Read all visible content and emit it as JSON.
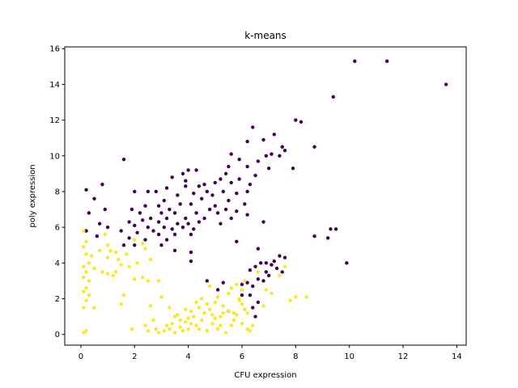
{
  "chart_data": {
    "type": "scatter",
    "title": "k-means",
    "xlabel": "CFU expression",
    "ylabel": "poly expression",
    "xlim": [
      -0.6,
      14.35
    ],
    "ylim": [
      -0.6,
      16.1
    ],
    "xticks": [
      "0",
      "2",
      "4",
      "6",
      "8",
      "10",
      "12",
      "14"
    ],
    "yticks": [
      "0",
      "2",
      "4",
      "6",
      "8",
      "10",
      "12",
      "14",
      "16"
    ],
    "grid": false,
    "series": [
      {
        "color": "#440154",
        "points": [
          [
            10.2,
            15.3
          ],
          [
            11.4,
            15.3
          ],
          [
            13.6,
            14.0
          ],
          [
            9.4,
            13.3
          ],
          [
            8.0,
            12.0
          ],
          [
            8.2,
            11.9
          ],
          [
            6.4,
            11.6
          ],
          [
            7.2,
            11.2
          ],
          [
            6.8,
            10.9
          ],
          [
            6.2,
            10.8
          ],
          [
            7.5,
            10.5
          ],
          [
            8.7,
            10.5
          ],
          [
            7.1,
            10.1
          ],
          [
            7.4,
            10.0
          ],
          [
            6.9,
            10.0
          ],
          [
            5.6,
            10.1
          ],
          [
            7.6,
            10.3
          ],
          [
            6.6,
            9.7
          ],
          [
            5.9,
            9.8
          ],
          [
            1.6,
            9.8
          ],
          [
            7.0,
            9.3
          ],
          [
            7.9,
            9.3
          ],
          [
            6.2,
            9.4
          ],
          [
            5.5,
            9.4
          ],
          [
            4.0,
            9.2
          ],
          [
            4.3,
            9.2
          ],
          [
            3.8,
            9.0
          ],
          [
            5.4,
            9.0
          ],
          [
            6.5,
            8.9
          ],
          [
            5.9,
            8.7
          ],
          [
            5.2,
            8.7
          ],
          [
            5.6,
            8.5
          ],
          [
            4.6,
            8.4
          ],
          [
            3.9,
            8.6
          ],
          [
            5.0,
            8.5
          ],
          [
            6.3,
            8.4
          ],
          [
            3.4,
            8.8
          ],
          [
            3.2,
            8.2
          ],
          [
            3.9,
            8.3
          ],
          [
            4.4,
            8.3
          ],
          [
            2.8,
            8.0
          ],
          [
            2.5,
            8.0
          ],
          [
            2.0,
            8.0
          ],
          [
            0.8,
            8.4
          ],
          [
            0.2,
            8.1
          ],
          [
            4.7,
            8.0
          ],
          [
            5.3,
            8.0
          ],
          [
            5.8,
            7.9
          ],
          [
            6.2,
            8.0
          ],
          [
            4.2,
            7.9
          ],
          [
            4.9,
            7.8
          ],
          [
            3.6,
            7.8
          ],
          [
            3.1,
            7.5
          ],
          [
            4.5,
            7.6
          ],
          [
            5.5,
            7.5
          ],
          [
            6.1,
            7.3
          ],
          [
            3.7,
            7.3
          ],
          [
            2.9,
            7.2
          ],
          [
            4.1,
            7.3
          ],
          [
            5.0,
            7.2
          ],
          [
            5.4,
            7.0
          ],
          [
            3.3,
            7.0
          ],
          [
            2.4,
            7.2
          ],
          [
            4.8,
            7.0
          ],
          [
            5.8,
            6.9
          ],
          [
            1.9,
            7.0
          ],
          [
            0.5,
            7.6
          ],
          [
            0.9,
            7.0
          ],
          [
            2.2,
            6.8
          ],
          [
            3.0,
            6.8
          ],
          [
            3.5,
            6.8
          ],
          [
            4.3,
            6.8
          ],
          [
            5.1,
            6.8
          ],
          [
            6.2,
            6.7
          ],
          [
            2.6,
            6.5
          ],
          [
            3.2,
            6.5
          ],
          [
            3.9,
            6.5
          ],
          [
            4.6,
            6.5
          ],
          [
            5.6,
            6.5
          ],
          [
            0.3,
            6.8
          ],
          [
            1.8,
            6.3
          ],
          [
            2.3,
            6.4
          ],
          [
            2.9,
            6.3
          ],
          [
            3.6,
            6.2
          ],
          [
            4.0,
            6.2
          ],
          [
            4.4,
            6.3
          ],
          [
            5.2,
            6.2
          ],
          [
            6.8,
            6.3
          ],
          [
            0.7,
            6.2
          ],
          [
            1.0,
            6.0
          ],
          [
            2.0,
            6.1
          ],
          [
            2.5,
            6.0
          ],
          [
            3.1,
            6.0
          ],
          [
            3.4,
            5.9
          ],
          [
            3.8,
            6.0
          ],
          [
            4.2,
            5.9
          ],
          [
            1.5,
            5.8
          ],
          [
            2.7,
            5.8
          ],
          [
            0.2,
            5.8
          ],
          [
            2.1,
            5.7
          ],
          [
            2.9,
            5.6
          ],
          [
            3.5,
            5.6
          ],
          [
            4.1,
            5.6
          ],
          [
            0.6,
            5.5
          ],
          [
            1.8,
            5.4
          ],
          [
            2.4,
            5.3
          ],
          [
            3.2,
            5.3
          ],
          [
            2.0,
            5.0
          ],
          [
            1.6,
            5.0
          ],
          [
            3.0,
            5.0
          ],
          [
            8.7,
            5.5
          ],
          [
            9.3,
            5.9
          ],
          [
            9.5,
            5.9
          ],
          [
            9.2,
            5.4
          ],
          [
            5.8,
            5.2
          ],
          [
            6.6,
            4.8
          ],
          [
            3.5,
            4.7
          ],
          [
            4.1,
            4.6
          ],
          [
            7.4,
            4.4
          ],
          [
            7.2,
            4.1
          ],
          [
            6.9,
            4.0
          ],
          [
            6.5,
            3.8
          ],
          [
            7.1,
            3.9
          ],
          [
            7.5,
            3.5
          ],
          [
            9.9,
            4.0
          ],
          [
            4.1,
            4.1
          ],
          [
            6.7,
            4.0
          ],
          [
            6.3,
            3.6
          ],
          [
            6.9,
            3.5
          ],
          [
            7.3,
            3.7
          ],
          [
            7.6,
            4.3
          ],
          [
            6.8,
            3.0
          ],
          [
            6.6,
            3.1
          ],
          [
            7.0,
            3.3
          ],
          [
            6.2,
            2.9
          ],
          [
            6.4,
            2.7
          ],
          [
            6.3,
            2.2
          ],
          [
            6.6,
            1.8
          ],
          [
            6.4,
            1.5
          ],
          [
            6.5,
            1.0
          ],
          [
            5.5,
            1.3
          ],
          [
            5.3,
            2.9
          ],
          [
            6.0,
            2.8
          ],
          [
            4.7,
            3.0
          ],
          [
            6.0,
            2.2
          ],
          [
            5.1,
            2.5
          ]
        ]
      },
      {
        "color": "#fde725",
        "points": [
          [
            0.1,
            5.8
          ],
          [
            0.2,
            5.2
          ],
          [
            0.1,
            4.9
          ],
          [
            0.2,
            4.5
          ],
          [
            0.4,
            4.4
          ],
          [
            0.3,
            4.0
          ],
          [
            0.1,
            3.8
          ],
          [
            0.5,
            3.7
          ],
          [
            0.2,
            3.5
          ],
          [
            0.1,
            3.2
          ],
          [
            0.3,
            3.0
          ],
          [
            0.2,
            2.6
          ],
          [
            0.1,
            2.4
          ],
          [
            0.3,
            2.2
          ],
          [
            0.2,
            1.9
          ],
          [
            0.1,
            1.5
          ],
          [
            0.5,
            1.5
          ],
          [
            0.2,
            0.2
          ],
          [
            0.1,
            0.1
          ],
          [
            0.7,
            4.7
          ],
          [
            0.9,
            5.6
          ],
          [
            1.0,
            5.0
          ],
          [
            1.1,
            4.7
          ],
          [
            1.0,
            4.3
          ],
          [
            1.3,
            4.6
          ],
          [
            1.4,
            4.2
          ],
          [
            0.8,
            3.5
          ],
          [
            1.2,
            3.3
          ],
          [
            1.5,
            3.9
          ],
          [
            1.7,
            4.5
          ],
          [
            1.3,
            3.5
          ],
          [
            1.0,
            3.4
          ],
          [
            1.6,
            2.2
          ],
          [
            2.0,
            5.3
          ],
          [
            2.3,
            5.1
          ],
          [
            2.4,
            4.8
          ],
          [
            2.1,
            4.0
          ],
          [
            2.6,
            4.2
          ],
          [
            2.3,
            3.2
          ],
          [
            2.5,
            3.0
          ],
          [
            2.9,
            3.0
          ],
          [
            3.0,
            2.1
          ],
          [
            2.0,
            3.1
          ],
          [
            1.8,
            3.8
          ],
          [
            1.5,
            1.7
          ],
          [
            2.4,
            0.5
          ],
          [
            2.7,
            0.8
          ],
          [
            1.9,
            0.3
          ],
          [
            2.5,
            0.2
          ],
          [
            2.9,
            0.1
          ],
          [
            3.1,
            0.2
          ],
          [
            3.3,
            0.3
          ],
          [
            3.4,
            0.6
          ],
          [
            3.5,
            0.1
          ],
          [
            3.6,
            1.1
          ],
          [
            3.7,
            0.4
          ],
          [
            3.8,
            0.2
          ],
          [
            3.9,
            0.7
          ],
          [
            4.0,
            0.3
          ],
          [
            4.1,
            1.3
          ],
          [
            4.2,
            1.0
          ],
          [
            4.3,
            0.5
          ],
          [
            4.4,
            1.5
          ],
          [
            4.5,
            0.8
          ],
          [
            4.6,
            1.2
          ],
          [
            4.7,
            0.2
          ],
          [
            4.8,
            1.4
          ],
          [
            4.9,
            0.6
          ],
          [
            5.0,
            1.8
          ],
          [
            5.1,
            0.3
          ],
          [
            5.2,
            1.0
          ],
          [
            5.3,
            1.6
          ],
          [
            5.4,
            0.1
          ],
          [
            5.5,
            2.3
          ],
          [
            5.6,
            0.5
          ],
          [
            5.7,
            1.2
          ],
          [
            5.8,
            2.8
          ],
          [
            5.9,
            1.9
          ],
          [
            6.0,
            0.6
          ],
          [
            6.1,
            1.4
          ],
          [
            6.2,
            0.3
          ],
          [
            4.0,
            0.9
          ],
          [
            4.3,
            1.8
          ],
          [
            4.7,
            1.7
          ],
          [
            5.0,
            0.9
          ],
          [
            5.3,
            1.2
          ],
          [
            5.6,
            2.6
          ],
          [
            5.9,
            2.0
          ],
          [
            6.0,
            2.5
          ],
          [
            6.1,
            3.0
          ],
          [
            6.3,
            0.2
          ],
          [
            6.6,
            3.5
          ],
          [
            6.9,
            2.5
          ],
          [
            7.1,
            2.3
          ],
          [
            7.4,
            3.3
          ],
          [
            7.6,
            3.8
          ],
          [
            8.0,
            2.1
          ],
          [
            8.4,
            2.1
          ],
          [
            7.8,
            1.9
          ],
          [
            6.8,
            1.6
          ],
          [
            6.4,
            0.5
          ],
          [
            5.8,
            1.1
          ],
          [
            3.5,
            1.0
          ],
          [
            3.2,
            0.5
          ],
          [
            2.8,
            0.3
          ],
          [
            2.6,
            1.6
          ],
          [
            3.3,
            1.5
          ],
          [
            4.8,
            2.7
          ],
          [
            4.5,
            2.0
          ],
          [
            5.1,
            2.1
          ],
          [
            5.5,
            1.3
          ],
          [
            4.9,
            1.1
          ],
          [
            4.1,
            0.6
          ],
          [
            3.7,
            0.8
          ],
          [
            3.9,
            1.4
          ],
          [
            4.4,
            0.3
          ],
          [
            5.2,
            0.5
          ],
          [
            5.7,
            0.8
          ],
          [
            6.2,
            1.2
          ],
          [
            6.0,
            1.7
          ]
        ]
      }
    ]
  }
}
